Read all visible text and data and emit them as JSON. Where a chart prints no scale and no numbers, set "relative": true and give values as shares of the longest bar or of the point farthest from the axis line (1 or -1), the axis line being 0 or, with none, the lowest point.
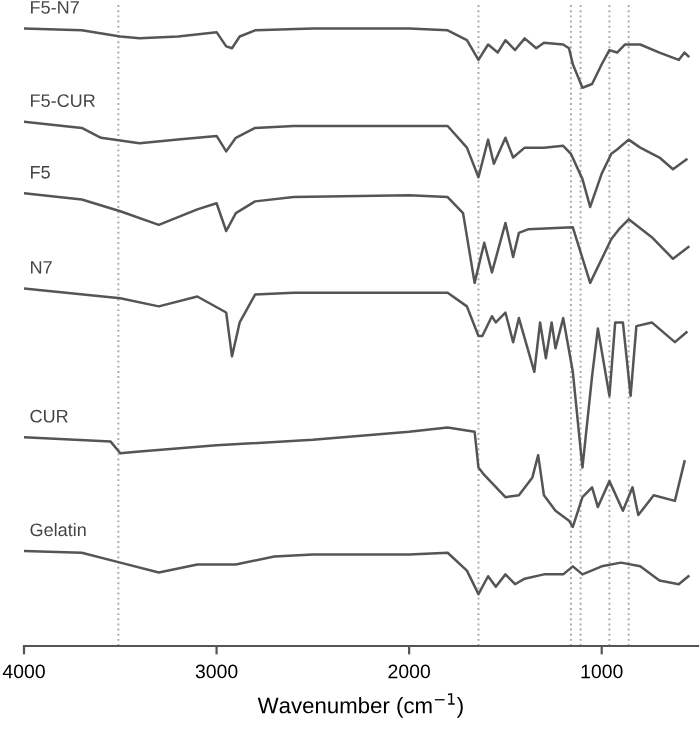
{
  "chart_data": {
    "type": "line",
    "relative": true,
    "xlabel": "Wavenumber (cm$^{−1}$)",
    "xlim": [
      4000,
      500
    ],
    "xticks": [
      4000,
      3000,
      2000,
      1000
    ],
    "tick_labels": "x",
    "grid": false,
    "legend": false,
    "line_style": "solid",
    "marker": "none",
    "ref_lines": [
      {
        "axis": "x",
        "value": 3510,
        "color": "#aaaaaa",
        "line_style": "dotted"
      },
      {
        "axis": "x",
        "value": 1640,
        "color": "#aaaaaa",
        "line_style": "dotted"
      },
      {
        "axis": "x",
        "value": 1160,
        "color": "#aaaaaa",
        "line_style": "dotted"
      },
      {
        "axis": "x",
        "value": 1110,
        "color": "#aaaaaa",
        "line_style": "dotted"
      },
      {
        "axis": "x",
        "value": 960,
        "color": "#aaaaaa",
        "line_style": "dotted"
      },
      {
        "axis": "x",
        "value": 860,
        "color": "#aaaaaa",
        "line_style": "dotted"
      }
    ],
    "series": [
      {
        "name": "F5-N7",
        "color": "#555555",
        "x": [
          4000,
          3700,
          3500,
          3400,
          3200,
          3000,
          2950,
          2920,
          2880,
          2800,
          2500,
          2000,
          1800,
          1700,
          1640,
          1590,
          1540,
          1500,
          1450,
          1400,
          1340,
          1300,
          1200,
          1170,
          1150,
          1100,
          1050,
          1000,
          960,
          920,
          880,
          850,
          800,
          700,
          600,
          570,
          550
        ],
        "values": [
          1.0,
          0.997,
          0.987,
          0.984,
          0.987,
          0.994,
          0.971,
          0.968,
          0.987,
          0.997,
          1.0,
          1.0,
          0.997,
          0.981,
          0.949,
          0.974,
          0.961,
          0.981,
          0.965,
          0.984,
          0.968,
          0.977,
          0.974,
          0.968,
          0.942,
          0.904,
          0.91,
          0.942,
          0.965,
          0.961,
          0.974,
          0.974,
          0.974,
          0.961,
          0.949,
          0.961,
          0.955
        ]
      },
      {
        "name": "F5-CUR",
        "color": "#555555",
        "x": [
          4000,
          3700,
          3600,
          3400,
          3200,
          3000,
          2950,
          2900,
          2800,
          2600,
          2000,
          1800,
          1700,
          1640,
          1590,
          1560,
          1500,
          1460,
          1400,
          1300,
          1200,
          1160,
          1100,
          1060,
          1000,
          950,
          920,
          860,
          800,
          700,
          630,
          560
        ],
        "values": [
          0.849,
          0.839,
          0.823,
          0.814,
          0.82,
          0.826,
          0.801,
          0.823,
          0.839,
          0.842,
          0.842,
          0.842,
          0.807,
          0.759,
          0.82,
          0.781,
          0.823,
          0.791,
          0.807,
          0.807,
          0.81,
          0.797,
          0.756,
          0.711,
          0.765,
          0.797,
          0.804,
          0.82,
          0.807,
          0.791,
          0.772,
          0.788
        ]
      },
      {
        "name": "F5",
        "color": "#555555",
        "x": [
          4000,
          3700,
          3500,
          3300,
          3100,
          3000,
          2950,
          2900,
          2800,
          2600,
          2000,
          1800,
          1720,
          1660,
          1610,
          1570,
          1500,
          1460,
          1430,
          1380,
          1150,
          1060,
          950,
          910,
          860,
          740,
          630,
          550
        ],
        "values": [
          0.733,
          0.723,
          0.704,
          0.682,
          0.707,
          0.717,
          0.672,
          0.701,
          0.72,
          0.727,
          0.73,
          0.727,
          0.701,
          0.588,
          0.653,
          0.605,
          0.685,
          0.63,
          0.669,
          0.675,
          0.678,
          0.588,
          0.659,
          0.675,
          0.691,
          0.662,
          0.627,
          0.646
        ]
      },
      {
        "name": "N7",
        "color": "#555555",
        "x": [
          4000,
          3500,
          3300,
          3100,
          2950,
          2920,
          2880,
          2800,
          2600,
          1800,
          1700,
          1640,
          1620,
          1570,
          1550,
          1500,
          1460,
          1430,
          1350,
          1320,
          1290,
          1260,
          1240,
          1200,
          1150,
          1100,
          1050,
          1020,
          960,
          930,
          890,
          850,
          820,
          740,
          620,
          560
        ],
        "values": [
          0.579,
          0.563,
          0.55,
          0.566,
          0.54,
          0.469,
          0.524,
          0.569,
          0.572,
          0.572,
          0.55,
          0.502,
          0.502,
          0.534,
          0.524,
          0.54,
          0.492,
          0.531,
          0.444,
          0.524,
          0.466,
          0.524,
          0.482,
          0.531,
          0.444,
          0.289,
          0.437,
          0.514,
          0.405,
          0.524,
          0.524,
          0.405,
          0.518,
          0.524,
          0.492,
          0.508
        ]
      },
      {
        "name": "CUR",
        "color": "#555555",
        "x": [
          4000,
          3550,
          3500,
          3400,
          3000,
          2500,
          2000,
          1800,
          1660,
          1640,
          1610,
          1500,
          1430,
          1360,
          1330,
          1300,
          1240,
          1170,
          1150,
          1100,
          1050,
          1020,
          960,
          890,
          840,
          810,
          730,
          620,
          570
        ],
        "values": [
          0.338,
          0.331,
          0.312,
          0.315,
          0.325,
          0.334,
          0.347,
          0.354,
          0.347,
          0.289,
          0.277,
          0.241,
          0.244,
          0.273,
          0.309,
          0.244,
          0.219,
          0.203,
          0.193,
          0.241,
          0.257,
          0.225,
          0.267,
          0.219,
          0.257,
          0.212,
          0.244,
          0.235,
          0.299
        ]
      },
      {
        "name": "Gelatin",
        "color": "#555555",
        "x": [
          4000,
          3700,
          3500,
          3300,
          3100,
          2900,
          2700,
          2500,
          2000,
          1800,
          1700,
          1640,
          1590,
          1550,
          1500,
          1450,
          1400,
          1300,
          1200,
          1150,
          1100,
          1000,
          900,
          800,
          700,
          600,
          550
        ],
        "values": [
          0.154,
          0.151,
          0.135,
          0.119,
          0.132,
          0.132,
          0.145,
          0.148,
          0.148,
          0.151,
          0.122,
          0.084,
          0.113,
          0.096,
          0.116,
          0.1,
          0.109,
          0.116,
          0.116,
          0.129,
          0.116,
          0.129,
          0.135,
          0.129,
          0.106,
          0.1,
          0.113
        ]
      }
    ]
  }
}
